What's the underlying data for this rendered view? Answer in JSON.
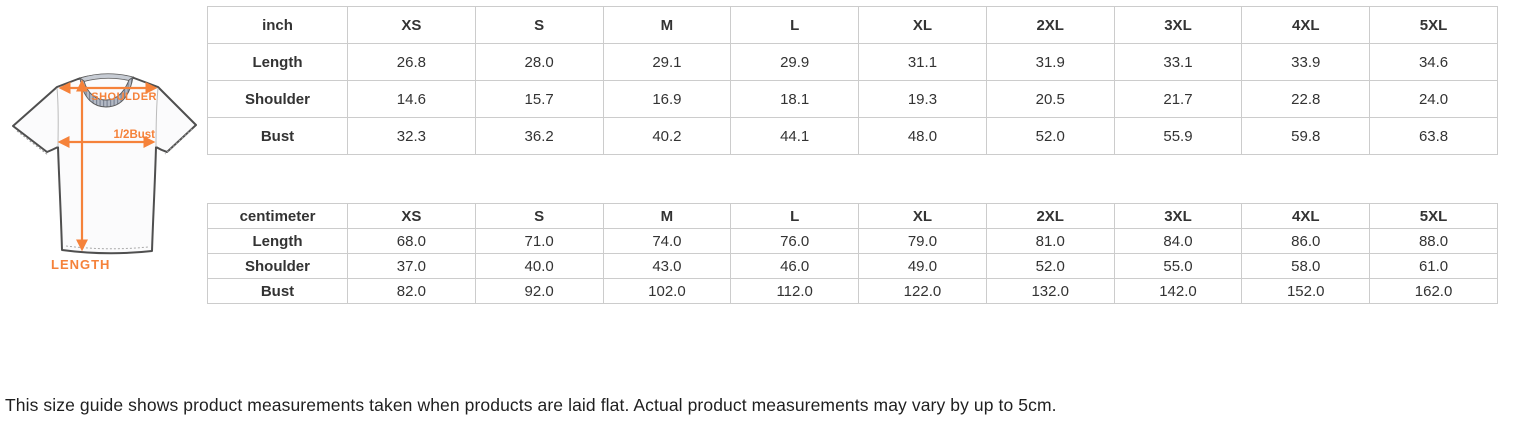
{
  "diagram": {
    "shoulder_label": "SHOULDER",
    "bust_label": "1/2Bust",
    "length_label": "LENGTH",
    "arrow_color": "#f5823a",
    "shirt_outline_color": "#4f4f4f",
    "collar_color": "#b3b9c4"
  },
  "tables": [
    {
      "unit_label": "inch",
      "columns": [
        "XS",
        "S",
        "M",
        "L",
        "XL",
        "2XL",
        "3XL",
        "4XL",
        "5XL"
      ],
      "rows": [
        {
          "label": "Length",
          "values": [
            "26.8",
            "28.0",
            "29.1",
            "29.9",
            "31.1",
            "31.9",
            "33.1",
            "33.9",
            "34.6"
          ]
        },
        {
          "label": "Shoulder",
          "values": [
            "14.6",
            "15.7",
            "16.9",
            "18.1",
            "19.3",
            "20.5",
            "21.7",
            "22.8",
            "24.0"
          ]
        },
        {
          "label": "Bust",
          "values": [
            "32.3",
            "36.2",
            "40.2",
            "44.1",
            "48.0",
            "52.0",
            "55.9",
            "59.8",
            "63.8"
          ]
        }
      ]
    },
    {
      "unit_label": "centimeter",
      "columns": [
        "XS",
        "S",
        "M",
        "L",
        "XL",
        "2XL",
        "3XL",
        "4XL",
        "5XL"
      ],
      "rows": [
        {
          "label": "Length",
          "values": [
            "68.0",
            "71.0",
            "74.0",
            "76.0",
            "79.0",
            "81.0",
            "84.0",
            "86.0",
            "88.0"
          ]
        },
        {
          "label": "Shoulder",
          "values": [
            "37.0",
            "40.0",
            "43.0",
            "46.0",
            "49.0",
            "52.0",
            "55.0",
            "58.0",
            "61.0"
          ]
        },
        {
          "label": "Bust",
          "values": [
            "82.0",
            "92.0",
            "102.0",
            "112.0",
            "122.0",
            "132.0",
            "142.0",
            "152.0",
            "162.0"
          ]
        }
      ]
    }
  ],
  "footnote": "This size guide shows product measurements taken when products are laid flat. Actual product measurements may vary by up to 5cm."
}
